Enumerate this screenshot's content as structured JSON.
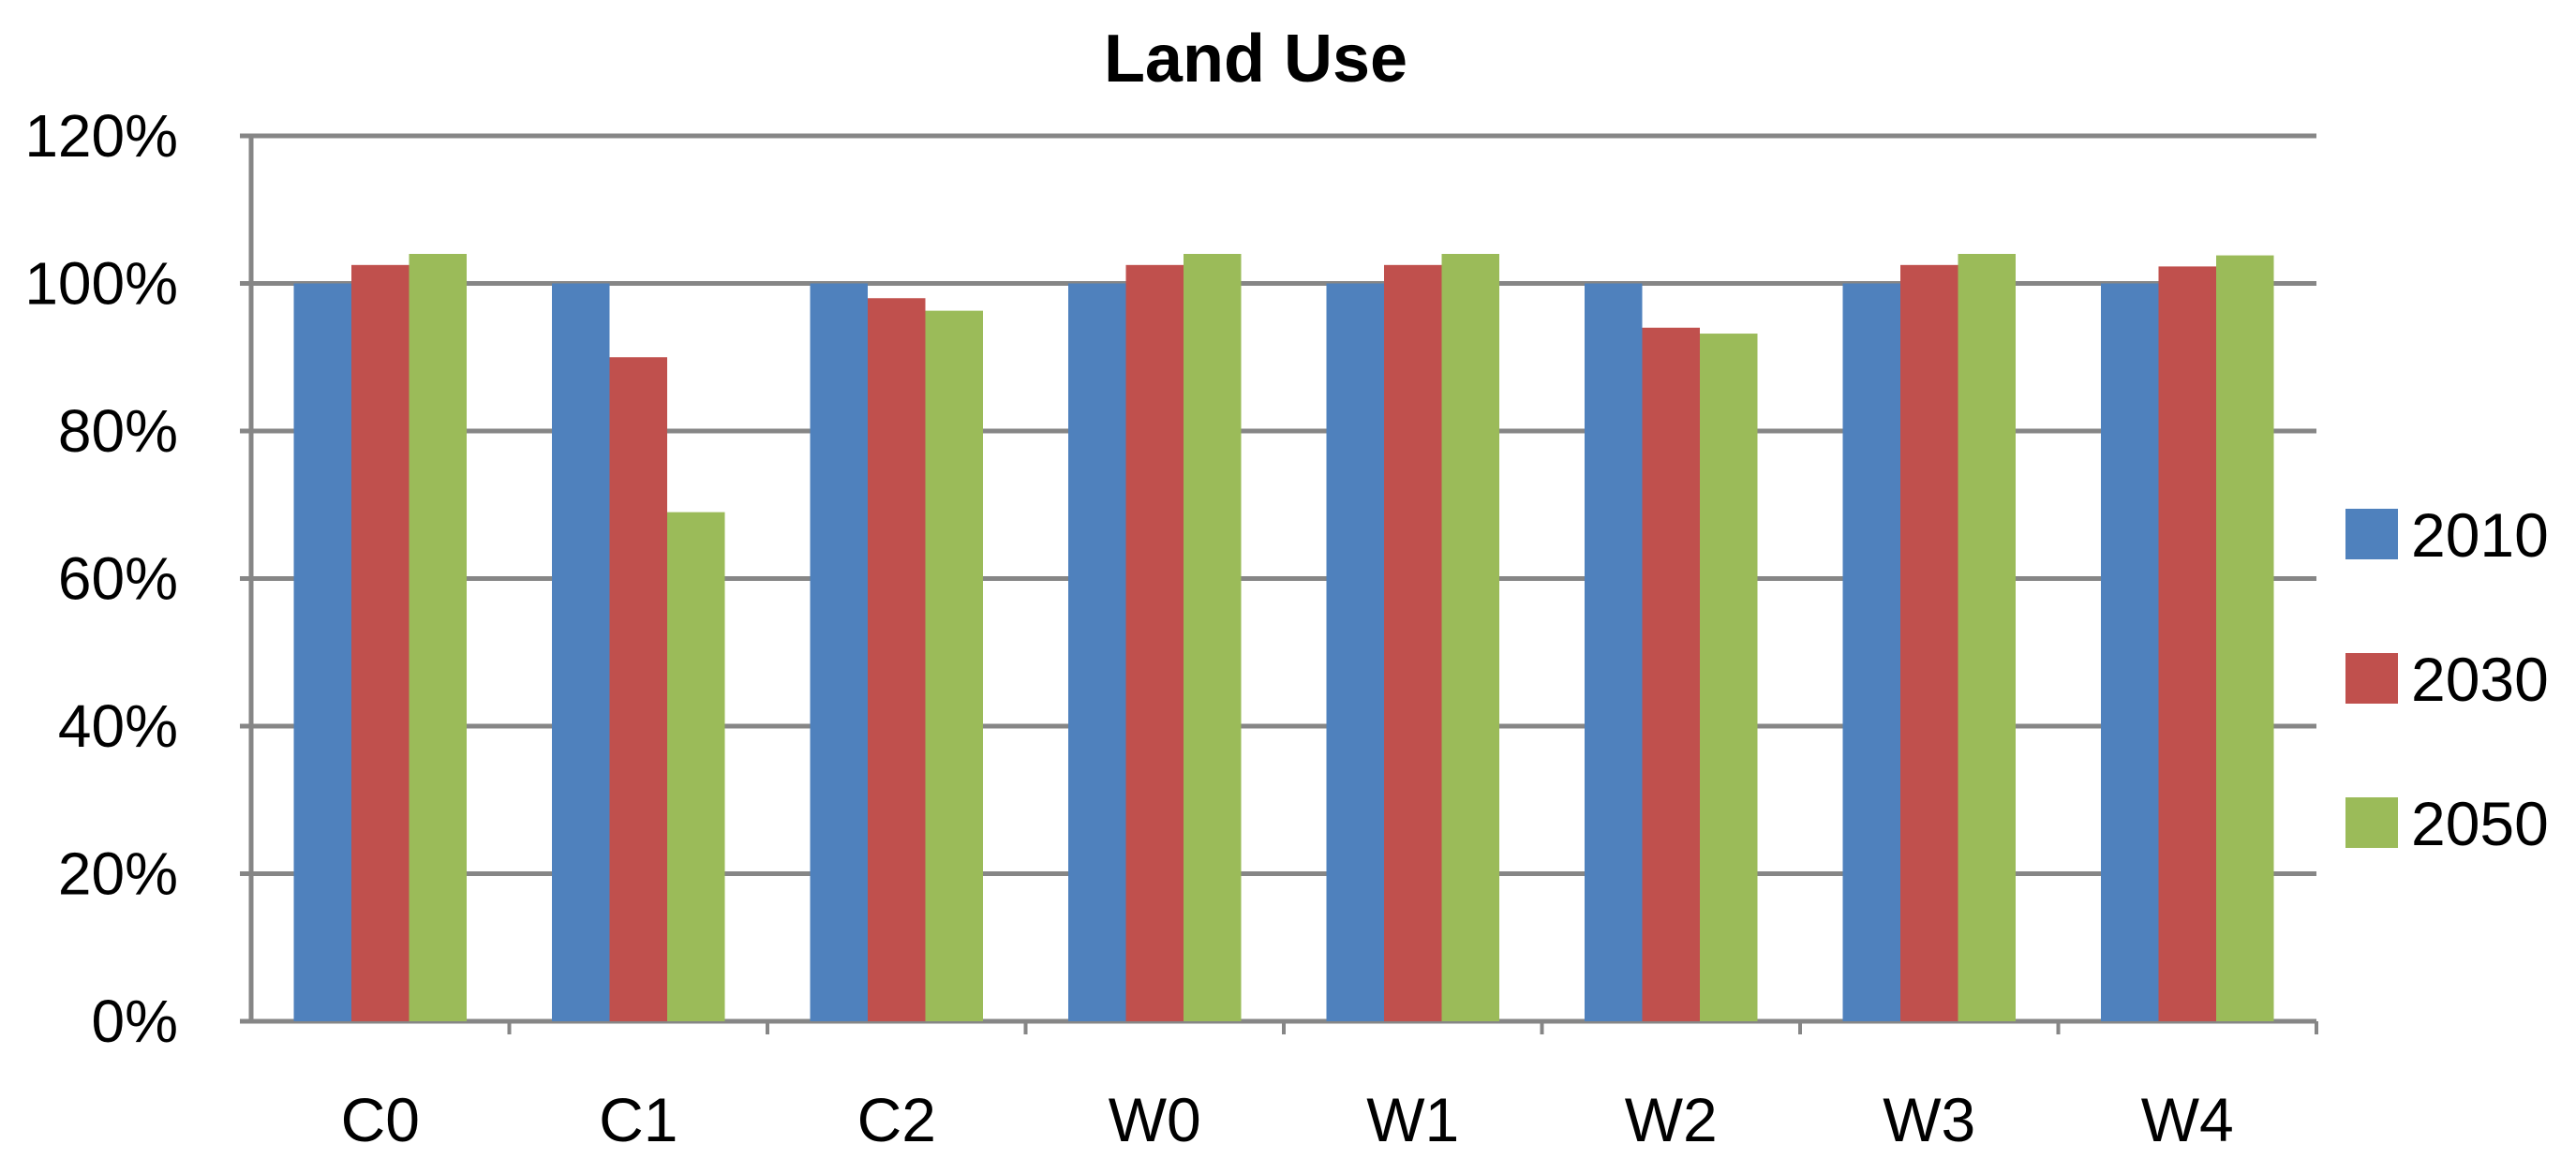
{
  "chart_data": {
    "type": "bar",
    "title": "Land Use",
    "categories": [
      "C0",
      "C1",
      "C2",
      "W0",
      "W1",
      "W2",
      "W3",
      "W4"
    ],
    "series": [
      {
        "name": "2010",
        "color": "#4F81BD",
        "values": [
          100,
          100,
          100,
          100,
          100,
          100,
          100,
          100
        ]
      },
      {
        "name": "2030",
        "color": "#C0504D",
        "values": [
          102.5,
          90,
          98,
          102.5,
          102.5,
          94,
          102.5,
          102.3
        ]
      },
      {
        "name": "2050",
        "color": "#9BBB59",
        "values": [
          104,
          69,
          96.3,
          104,
          104,
          93.2,
          104,
          103.8
        ]
      }
    ],
    "ylim": [
      0,
      120
    ],
    "yticks": [
      "0%",
      "20%",
      "40%",
      "60%",
      "80%",
      "100%",
      "120%"
    ],
    "grid": true,
    "legend_position": "right"
  }
}
